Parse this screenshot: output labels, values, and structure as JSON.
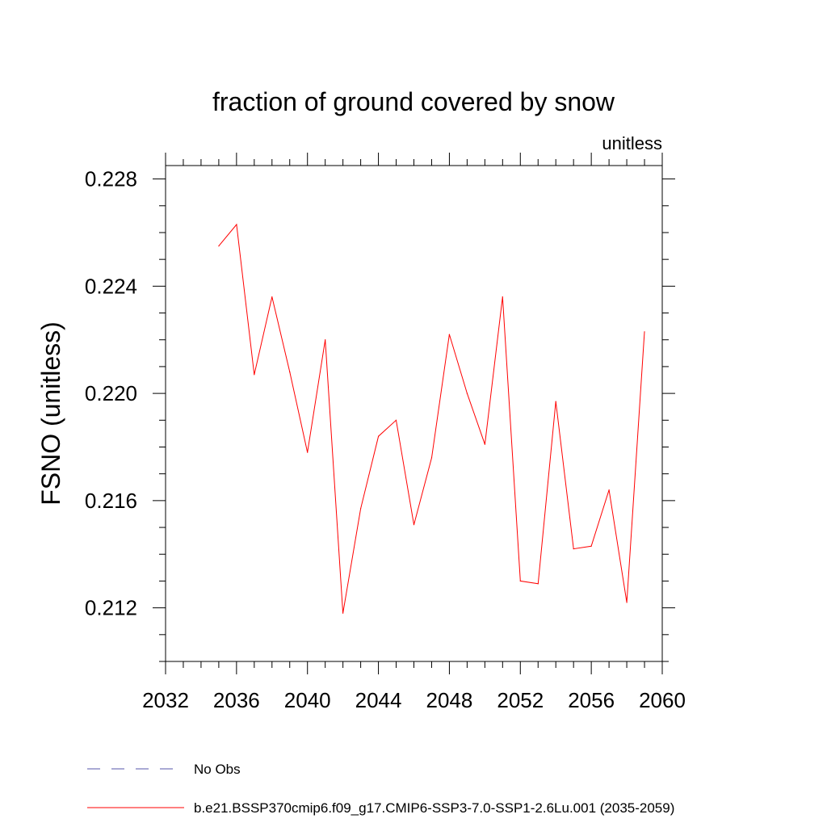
{
  "chart_data": {
    "type": "line",
    "title": "fraction of ground covered by snow",
    "units_label": "unitless",
    "ylabel": "FSNO  (unitless)",
    "xlabel": "",
    "xlim": [
      2032,
      2060
    ],
    "ylim": [
      0.21,
      0.2285
    ],
    "x_major_ticks": [
      2032,
      2036,
      2040,
      2044,
      2048,
      2052,
      2056,
      2060
    ],
    "x_tick_labels": [
      "2032",
      "2036",
      "2040",
      "2044",
      "2048",
      "2052",
      "2056",
      "2060"
    ],
    "x_minor_step": 1,
    "y_major_ticks": [
      0.212,
      0.216,
      0.22,
      0.224,
      0.228
    ],
    "y_tick_labels": [
      "0.212",
      "0.216",
      "0.220",
      "0.224",
      "0.228"
    ],
    "y_minor_step": 0.001,
    "grid": false,
    "legend_placement": "bottom-left",
    "series": [
      {
        "name": "b.e21.BSSP370cmip6.f09_g17.CMIP6-SSP3-7.0-SSP1-2.6Lu.001 (2035-2059)",
        "color": "#ff0000",
        "style": "solid",
        "x": [
          2035,
          2036,
          2037,
          2038,
          2039,
          2040,
          2041,
          2042,
          2043,
          2044,
          2045,
          2046,
          2047,
          2048,
          2049,
          2050,
          2051,
          2052,
          2053,
          2054,
          2055,
          2056,
          2057,
          2058,
          2059
        ],
        "values": [
          0.2255,
          0.2263,
          0.2207,
          0.2236,
          0.2208,
          0.2178,
          0.222,
          0.2118,
          0.2157,
          0.2184,
          0.219,
          0.2151,
          0.2176,
          0.2222,
          0.22,
          0.2181,
          0.2236,
          0.213,
          0.2129,
          0.2197,
          0.2142,
          0.2143,
          0.2164,
          0.2122,
          0.2223
        ]
      }
    ],
    "legend": [
      {
        "label": "No Obs",
        "color": "#5555aa",
        "style": "dashed"
      },
      {
        "label": "b.e21.BSSP370cmip6.f09_g17.CMIP6-SSP3-7.0-SSP1-2.6Lu.001 (2035-2059)",
        "color": "#ff0000",
        "style": "solid"
      }
    ]
  }
}
